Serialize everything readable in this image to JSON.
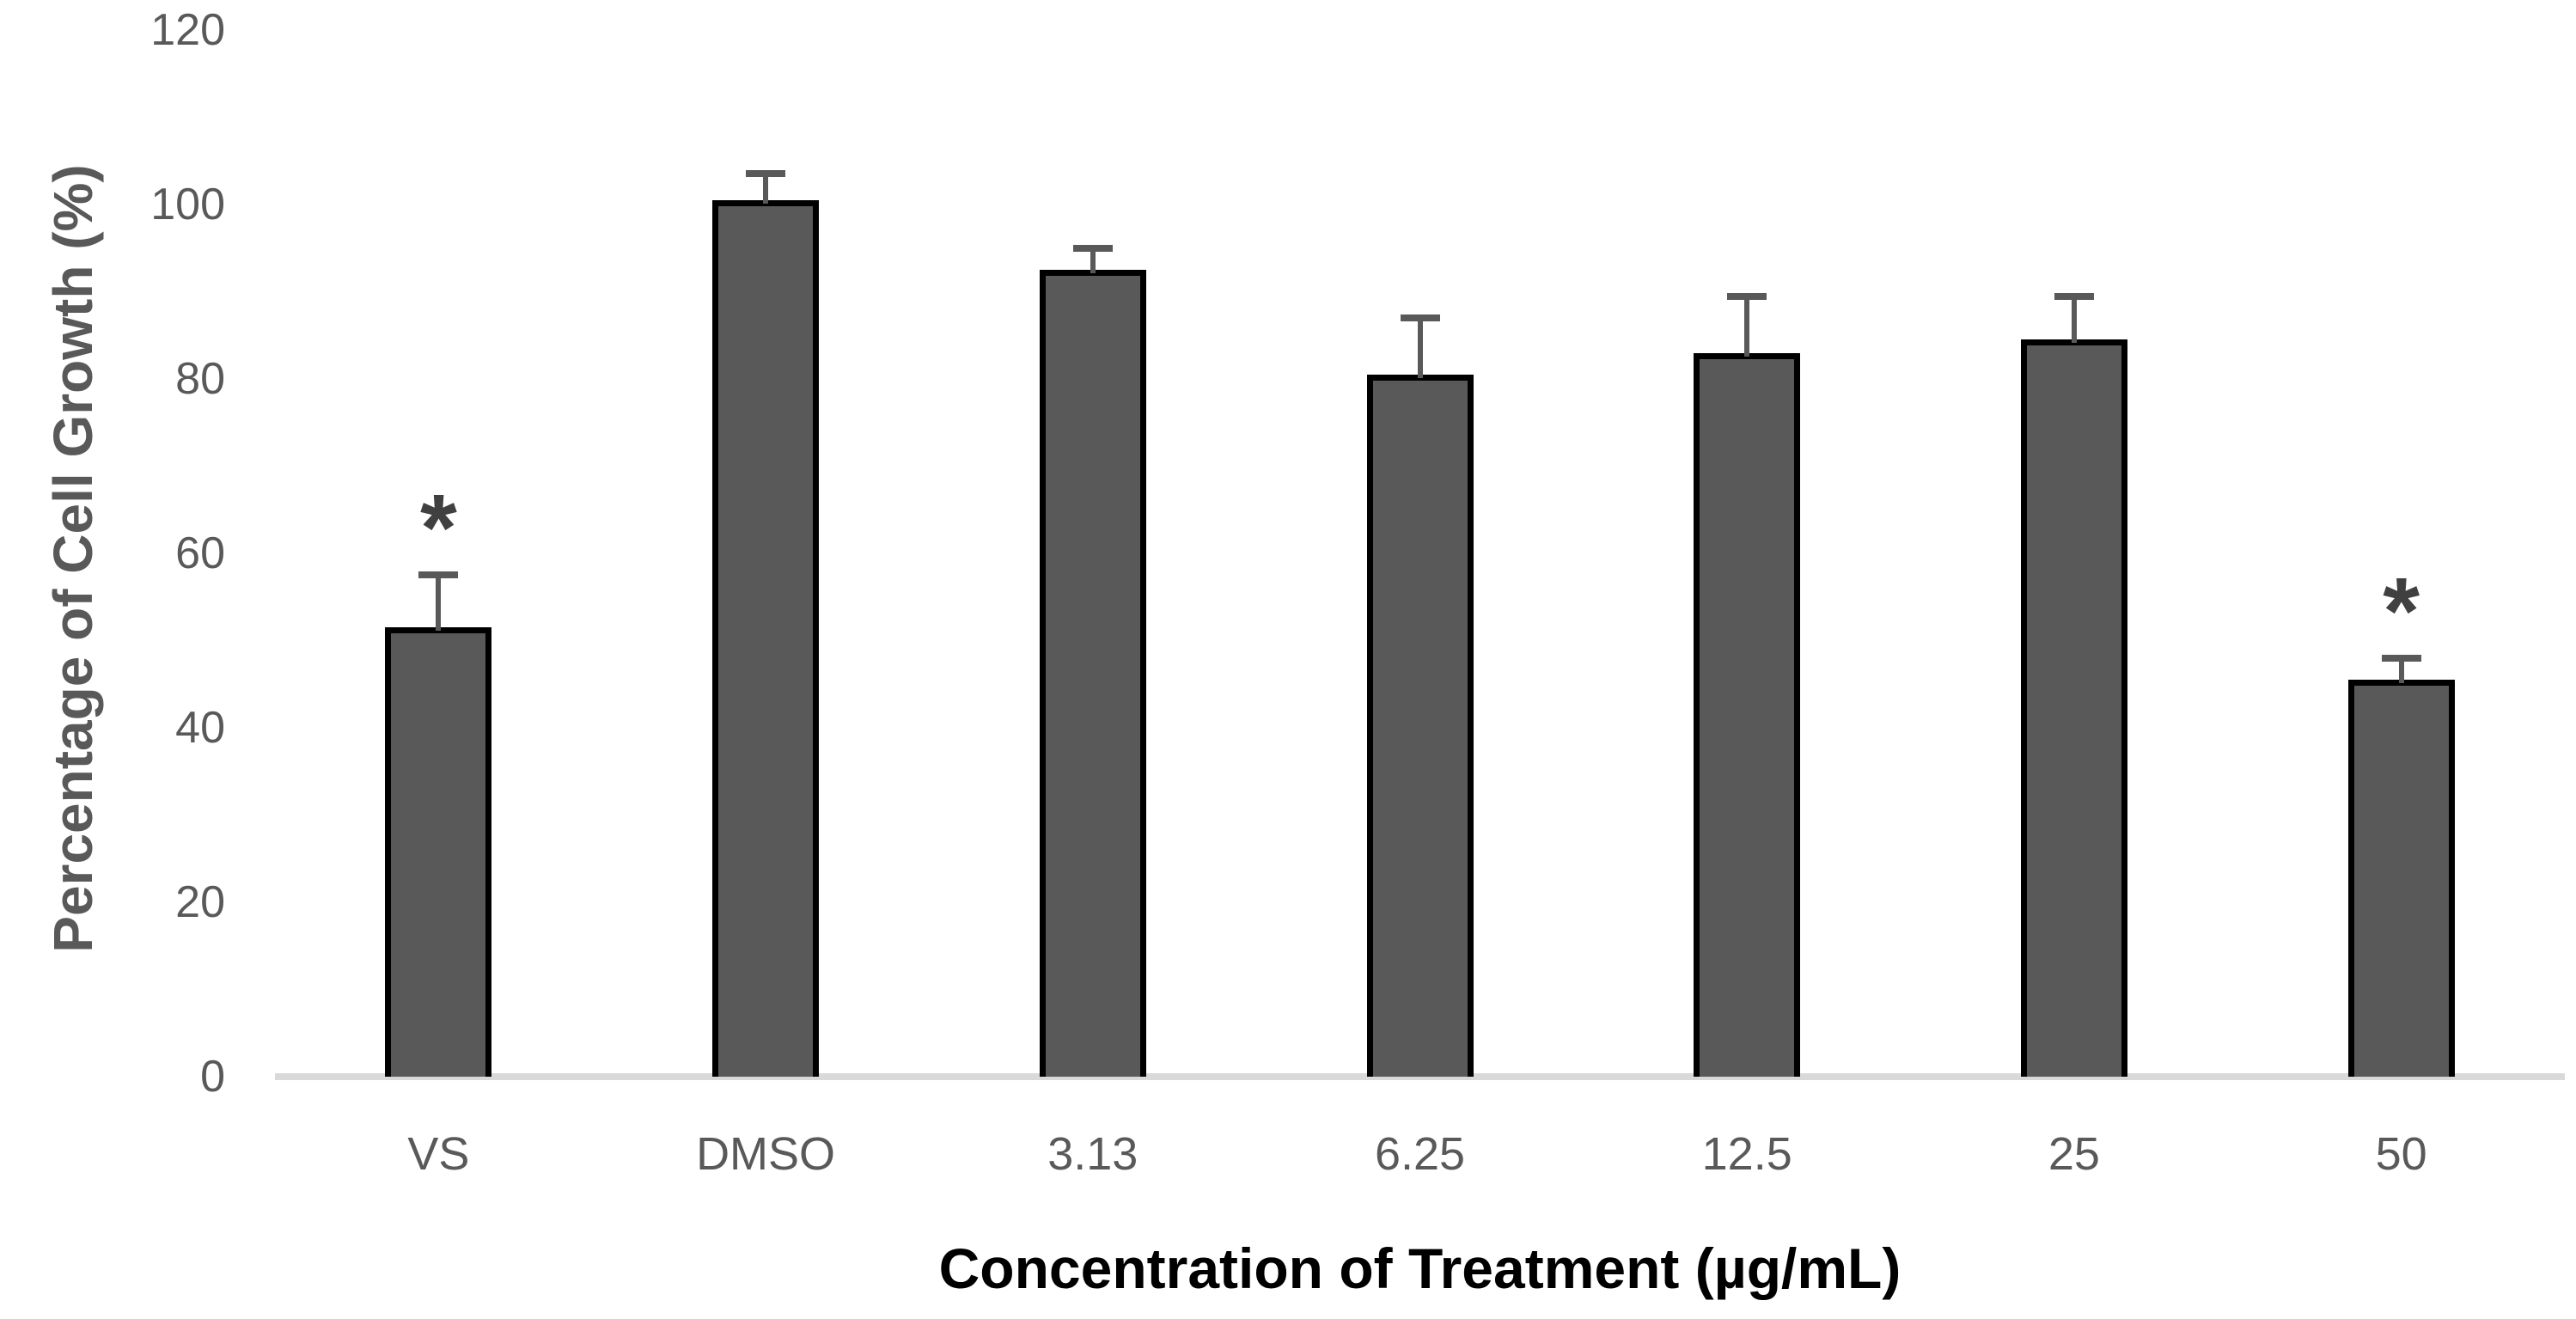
{
  "chart_data": {
    "type": "bar",
    "title": "",
    "categories": [
      "VS",
      "DMSO",
      "3.13",
      "6.25",
      "12.5",
      "25",
      "50"
    ],
    "values": [
      51.5,
      100.5,
      92.5,
      80.5,
      83,
      84.5,
      45.5
    ],
    "errors_plus": [
      6,
      3,
      2.5,
      6.5,
      6.5,
      5,
      2.5
    ],
    "significance": [
      "*",
      "",
      "",
      "",
      "",
      "",
      "*"
    ],
    "xlabel": "Concentration of Treatment (µg/mL)",
    "ylabel": "Percentage of Cell Growth (%)",
    "ylim": [
      0,
      120
    ],
    "yticks": [
      0,
      20,
      40,
      60,
      80,
      100,
      120
    ],
    "grid": false,
    "legend": false,
    "style": {
      "bar_fill": "#595959",
      "bar_border": "#000000",
      "error_bar_color": "#595959",
      "axis_line_color": "#d9d9d9",
      "tick_label_color": "#595959",
      "y_title_color": "#595959",
      "x_title_color": "#000000",
      "background": "#ffffff"
    }
  }
}
